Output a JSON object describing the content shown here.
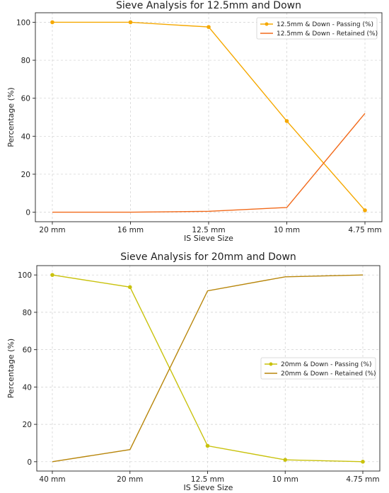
{
  "chart_data": [
    {
      "type": "line",
      "title": "Sieve Analysis for 12.5mm and Down",
      "xlabel": "IS Sieve Size",
      "ylabel": "Percentage (%)",
      "categories": [
        "20 mm",
        "16 mm",
        "12.5 mm",
        "10 mm",
        "4.75 mm"
      ],
      "ylim": [
        -5,
        105
      ],
      "yticks": [
        0,
        20,
        40,
        60,
        80,
        100
      ],
      "grid": true,
      "legend_position": "top-right",
      "series": [
        {
          "name": "12.5mm & Down - Passing (%)",
          "values": [
            100,
            100,
            97.5,
            48,
            1
          ],
          "color": "#f5a800",
          "marker": true
        },
        {
          "name": "12.5mm & Down - Retained (%)",
          "values": [
            0,
            0,
            0.5,
            2.5,
            52
          ],
          "color": "#f26a1b",
          "marker": false
        }
      ]
    },
    {
      "type": "line",
      "title": "Sieve Analysis for 20mm and Down",
      "xlabel": "IS Sieve Size",
      "ylabel": "Percentage (%)",
      "categories": [
        "40 mm",
        "20 mm",
        "12.5 mm",
        "10 mm",
        "4.75 mm"
      ],
      "ylim": [
        -5,
        105
      ],
      "yticks": [
        0,
        20,
        40,
        60,
        80,
        100
      ],
      "grid": true,
      "legend_position": "center-right",
      "series": [
        {
          "name": "20mm & Down - Passing (%)",
          "values": [
            100,
            93.5,
            8.5,
            1,
            0
          ],
          "color": "#c9c20d",
          "marker": true
        },
        {
          "name": "20mm & Down - Retained (%)",
          "values": [
            0,
            6.5,
            91.5,
            99,
            100
          ],
          "color": "#b8860b",
          "marker": false
        }
      ]
    }
  ]
}
